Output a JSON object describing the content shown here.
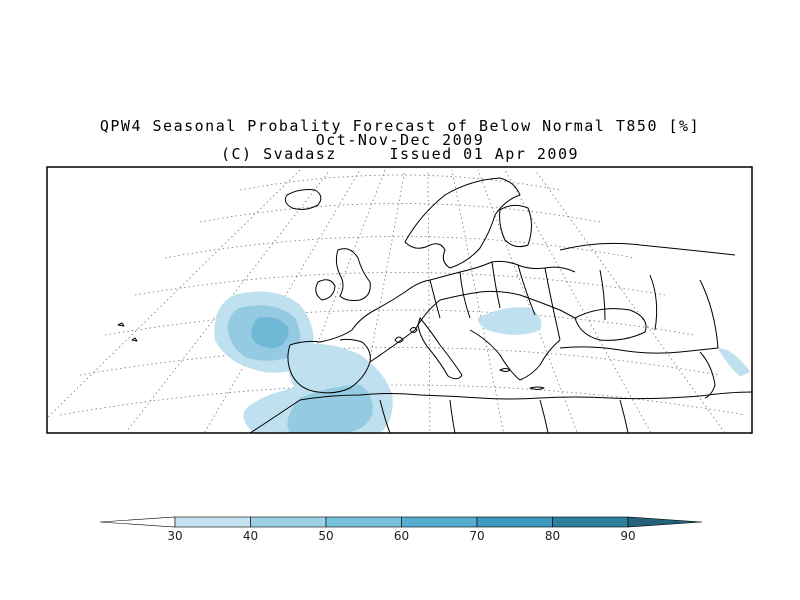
{
  "title": {
    "line1": "QPW4 Seasonal Probality Forecast of Below Normal T850 [%]",
    "line2": "Oct-Nov-Dec 2009",
    "line3_left": "(C) Svadasz",
    "line3_right": "Issued 01 Apr 2009"
  },
  "legend": {
    "levels": [
      "30",
      "40",
      "50",
      "60",
      "70",
      "80",
      "90"
    ],
    "colors": [
      "#ffffff",
      "#c4e3ef",
      "#9dd2e6",
      "#78c1dc",
      "#55aed0",
      "#3d98bd",
      "#2f7f9f",
      "#23627a"
    ]
  },
  "map_colors": {
    "coast": "#000000",
    "graticule": "#777777",
    "prob_40": "#bfe0ee",
    "prob_50": "#94cbe2",
    "prob_60": "#6fb8d6"
  }
}
